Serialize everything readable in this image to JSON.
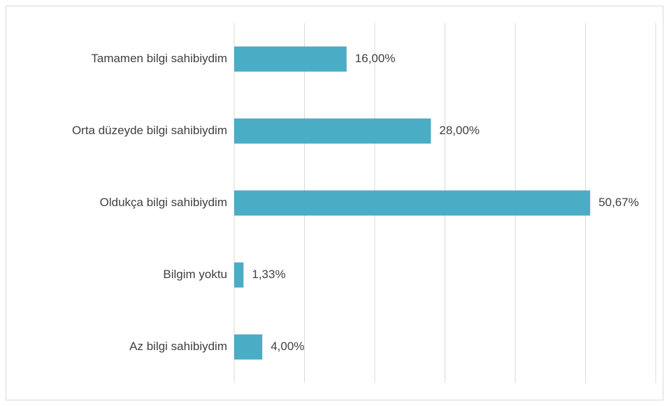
{
  "chart_data": {
    "type": "bar",
    "orientation": "horizontal",
    "categories": [
      "Tamamen bilgi sahibiydim",
      "Orta düzeyde bilgi sahibiydim",
      "Oldukça bilgi sahibiydim",
      "Bilgim yoktu",
      "Az bilgi sahibiydim"
    ],
    "values": [
      16,
      28,
      50.67,
      1.33,
      4
    ],
    "value_labels": [
      "16,00%",
      "28,00%",
      "50,67%",
      "1,33%",
      "4,00%"
    ],
    "color": "#4bacc6",
    "xlim": [
      0,
      60
    ],
    "xticks": [
      0,
      10,
      20,
      30,
      40,
      50,
      60
    ],
    "grid": true
  }
}
